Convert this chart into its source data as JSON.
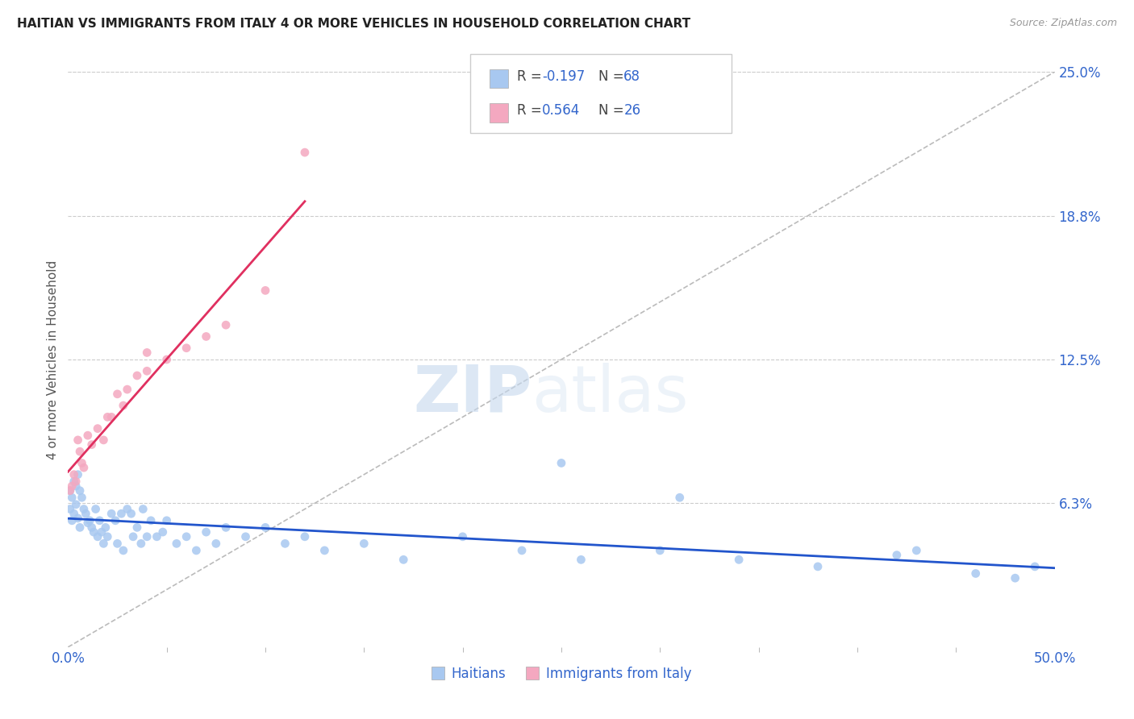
{
  "title": "HAITIAN VS IMMIGRANTS FROM ITALY 4 OR MORE VEHICLES IN HOUSEHOLD CORRELATION CHART",
  "source": "Source: ZipAtlas.com",
  "ylabel": "4 or more Vehicles in Household",
  "x_min": 0.0,
  "x_max": 0.5,
  "y_min": 0.0,
  "y_max": 0.25,
  "x_tick_positions": [
    0.0,
    0.5
  ],
  "x_tick_labels": [
    "0.0%",
    "50.0%"
  ],
  "y_ticks_right": [
    0.0625,
    0.125,
    0.1875,
    0.25
  ],
  "y_tick_labels_right": [
    "6.3%",
    "12.5%",
    "18.8%",
    "25.0%"
  ],
  "grid_color": "#cccccc",
  "background_color": "#ffffff",
  "color_haitian": "#a8c8f0",
  "color_italy": "#f4a8c0",
  "color_trend_haitian": "#2255cc",
  "color_trend_italy": "#e03060",
  "color_diag": "#bbbbbb",
  "color_text_blue": "#3366cc",
  "haitian_x": [
    0.001,
    0.001,
    0.002,
    0.002,
    0.003,
    0.003,
    0.004,
    0.004,
    0.005,
    0.005,
    0.006,
    0.006,
    0.007,
    0.008,
    0.009,
    0.01,
    0.011,
    0.012,
    0.013,
    0.014,
    0.015,
    0.016,
    0.017,
    0.018,
    0.019,
    0.02,
    0.022,
    0.024,
    0.025,
    0.027,
    0.028,
    0.03,
    0.032,
    0.033,
    0.035,
    0.037,
    0.038,
    0.04,
    0.042,
    0.045,
    0.048,
    0.05,
    0.055,
    0.06,
    0.065,
    0.07,
    0.075,
    0.08,
    0.09,
    0.1,
    0.11,
    0.12,
    0.13,
    0.15,
    0.17,
    0.2,
    0.23,
    0.26,
    0.3,
    0.34,
    0.38,
    0.42,
    0.46,
    0.48,
    0.49,
    0.25,
    0.31,
    0.43
  ],
  "haitian_y": [
    0.068,
    0.06,
    0.065,
    0.055,
    0.072,
    0.058,
    0.07,
    0.062,
    0.075,
    0.056,
    0.068,
    0.052,
    0.065,
    0.06,
    0.058,
    0.054,
    0.055,
    0.052,
    0.05,
    0.06,
    0.048,
    0.055,
    0.05,
    0.045,
    0.052,
    0.048,
    0.058,
    0.055,
    0.045,
    0.058,
    0.042,
    0.06,
    0.058,
    0.048,
    0.052,
    0.045,
    0.06,
    0.048,
    0.055,
    0.048,
    0.05,
    0.055,
    0.045,
    0.048,
    0.042,
    0.05,
    0.045,
    0.052,
    0.048,
    0.052,
    0.045,
    0.048,
    0.042,
    0.045,
    0.038,
    0.048,
    0.042,
    0.038,
    0.042,
    0.038,
    0.035,
    0.04,
    0.032,
    0.03,
    0.035,
    0.08,
    0.065,
    0.042
  ],
  "italy_x": [
    0.001,
    0.002,
    0.003,
    0.004,
    0.005,
    0.006,
    0.007,
    0.008,
    0.01,
    0.012,
    0.015,
    0.018,
    0.02,
    0.022,
    0.025,
    0.028,
    0.03,
    0.035,
    0.04,
    0.05,
    0.06,
    0.07,
    0.08,
    0.1,
    0.12,
    0.04
  ],
  "italy_y": [
    0.068,
    0.07,
    0.075,
    0.072,
    0.09,
    0.085,
    0.08,
    0.078,
    0.092,
    0.088,
    0.095,
    0.09,
    0.1,
    0.1,
    0.11,
    0.105,
    0.112,
    0.118,
    0.12,
    0.125,
    0.13,
    0.135,
    0.14,
    0.155,
    0.215,
    0.128
  ],
  "watermark_zip": "ZIP",
  "watermark_atlas": "atlas",
  "marker_size": 60
}
